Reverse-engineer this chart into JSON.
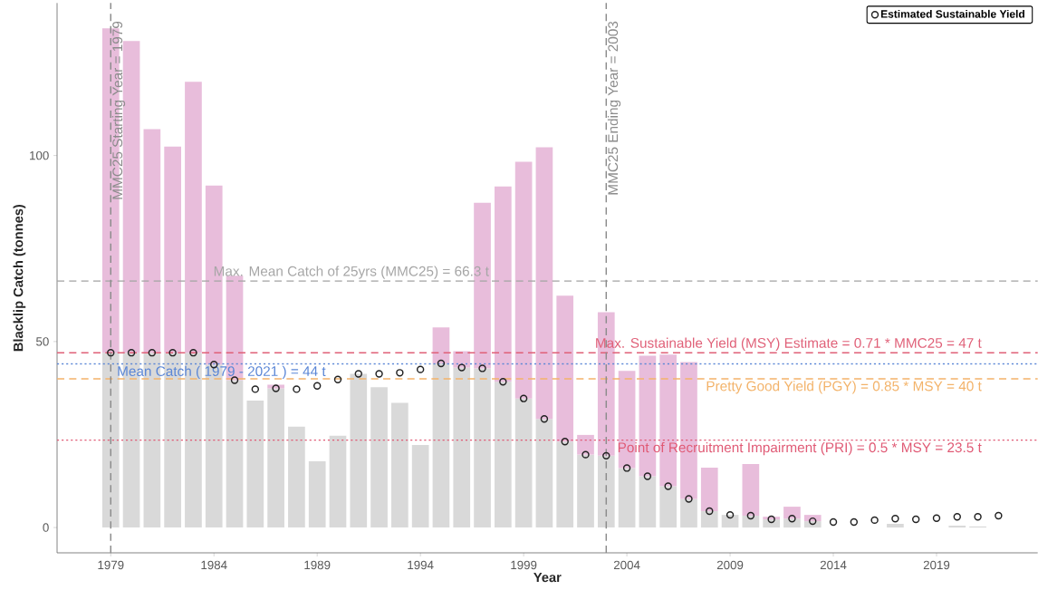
{
  "chart_data": {
    "type": "bar",
    "xlabel": "Year",
    "ylabel": "Blacklip Catch (tonnes)",
    "stacked": true,
    "x": [
      1979,
      1980,
      1981,
      1982,
      1983,
      1984,
      1985,
      1986,
      1987,
      1988,
      1989,
      1990,
      1991,
      1992,
      1993,
      1994,
      1995,
      1996,
      1997,
      1998,
      1999,
      2000,
      2001,
      2002,
      2003,
      2004,
      2005,
      2006,
      2007,
      2008,
      2009,
      2010,
      2011,
      2012,
      2013,
      2014,
      2015,
      2016,
      2017,
      2018,
      2019,
      2020,
      2021,
      2022
    ],
    "series": [
      {
        "color": "#d9d9d9",
        "values": [
          47,
          47,
          47,
          47,
          47,
          43.8,
          39.6,
          34.1,
          37.4,
          27.1,
          17.8,
          24.7,
          41.3,
          37.7,
          33.5,
          22.2,
          44.1,
          43.0,
          42.8,
          39.2,
          34.7,
          29.2,
          23.1,
          19.6,
          19.3,
          16.0,
          13.8,
          11.1,
          7.7,
          4.4,
          3.4,
          3.2,
          2.2,
          2.4,
          1.7,
          null,
          null,
          null,
          1.0,
          null,
          null,
          0.5,
          0.3,
          null
        ]
      },
      {
        "color": "#e8bddb",
        "values": [
          87.2,
          83.8,
          60.1,
          55.4,
          72.8,
          48.1,
          28.1,
          null,
          1.0,
          null,
          null,
          null,
          null,
          null,
          null,
          null,
          9.7,
          4.4,
          44.5,
          52.5,
          63.6,
          73.0,
          39.2,
          5.3,
          38.6,
          26.1,
          32.4,
          35.4,
          36.8,
          11.7,
          null,
          13.9,
          0.7,
          3.2,
          1.7,
          null,
          null,
          null,
          null,
          null,
          null,
          null,
          null,
          null
        ]
      },
      {
        "type": "scatter",
        "name": "Estimated Sustainable Yield",
        "color": "#222222",
        "marker": "circle",
        "values": [
          47,
          47,
          47,
          47,
          47,
          43.8,
          39.6,
          37.2,
          37.4,
          37.2,
          38.1,
          39.8,
          41.3,
          41.3,
          41.6,
          42.5,
          44.1,
          43.0,
          42.8,
          39.2,
          34.7,
          29.2,
          23.1,
          19.6,
          19.3,
          16.0,
          13.8,
          11.1,
          7.7,
          4.4,
          3.4,
          3.2,
          2.2,
          2.4,
          1.7,
          1.5,
          1.5,
          2.0,
          2.4,
          2.2,
          2.5,
          2.9,
          2.9,
          3.2
        ]
      }
    ],
    "xlim": [
      1976.4,
      2023.9
    ],
    "ylim": [
      -6.8,
      141
    ],
    "xticks": [
      1979,
      1984,
      1989,
      1994,
      1999,
      2004,
      2009,
      2014,
      2019
    ],
    "yticks": [
      0,
      50,
      100
    ],
    "ref_lines": [
      {
        "axis": "y",
        "value": 66.3,
        "label": "Max. Mean Catch of 25yrs (MMC25) = 66.3 t",
        "color": "#a6a6a6",
        "line_style": "dashed"
      },
      {
        "axis": "y",
        "value": 47,
        "label": "Max. Sustainable Yield (MSY) Estimate = 0.71 * MMC25 = 47 t",
        "color": "#e06078",
        "line_style": "dashed"
      },
      {
        "axis": "y",
        "value": 44,
        "label": "Mean Catch ( 1979 - 2021 ) = 44 t",
        "color": "#5a86d6",
        "line_style": "dotted"
      },
      {
        "axis": "y",
        "value": 40,
        "label": "Pretty Good Yield (PGY) = 0.85 * MSY = 40 t",
        "color": "#f3b36a",
        "line_style": "dashed"
      },
      {
        "axis": "y",
        "value": 23.5,
        "label": "Point of Recruitment Impairment (PRI) = 0.5 * MSY = 23.5 t",
        "color": "#e05a75",
        "line_style": "dotted"
      },
      {
        "axis": "x",
        "value": 1979,
        "label": "MMC25 Starting Year = 1979",
        "color": "#8c8c8c",
        "line_style": "dashed"
      },
      {
        "axis": "x",
        "value": 2003,
        "label": "MMC25 Ending Year = 2003",
        "color": "#8c8c8c",
        "line_style": "dashed"
      }
    ],
    "legend": "top right",
    "grid": false
  }
}
